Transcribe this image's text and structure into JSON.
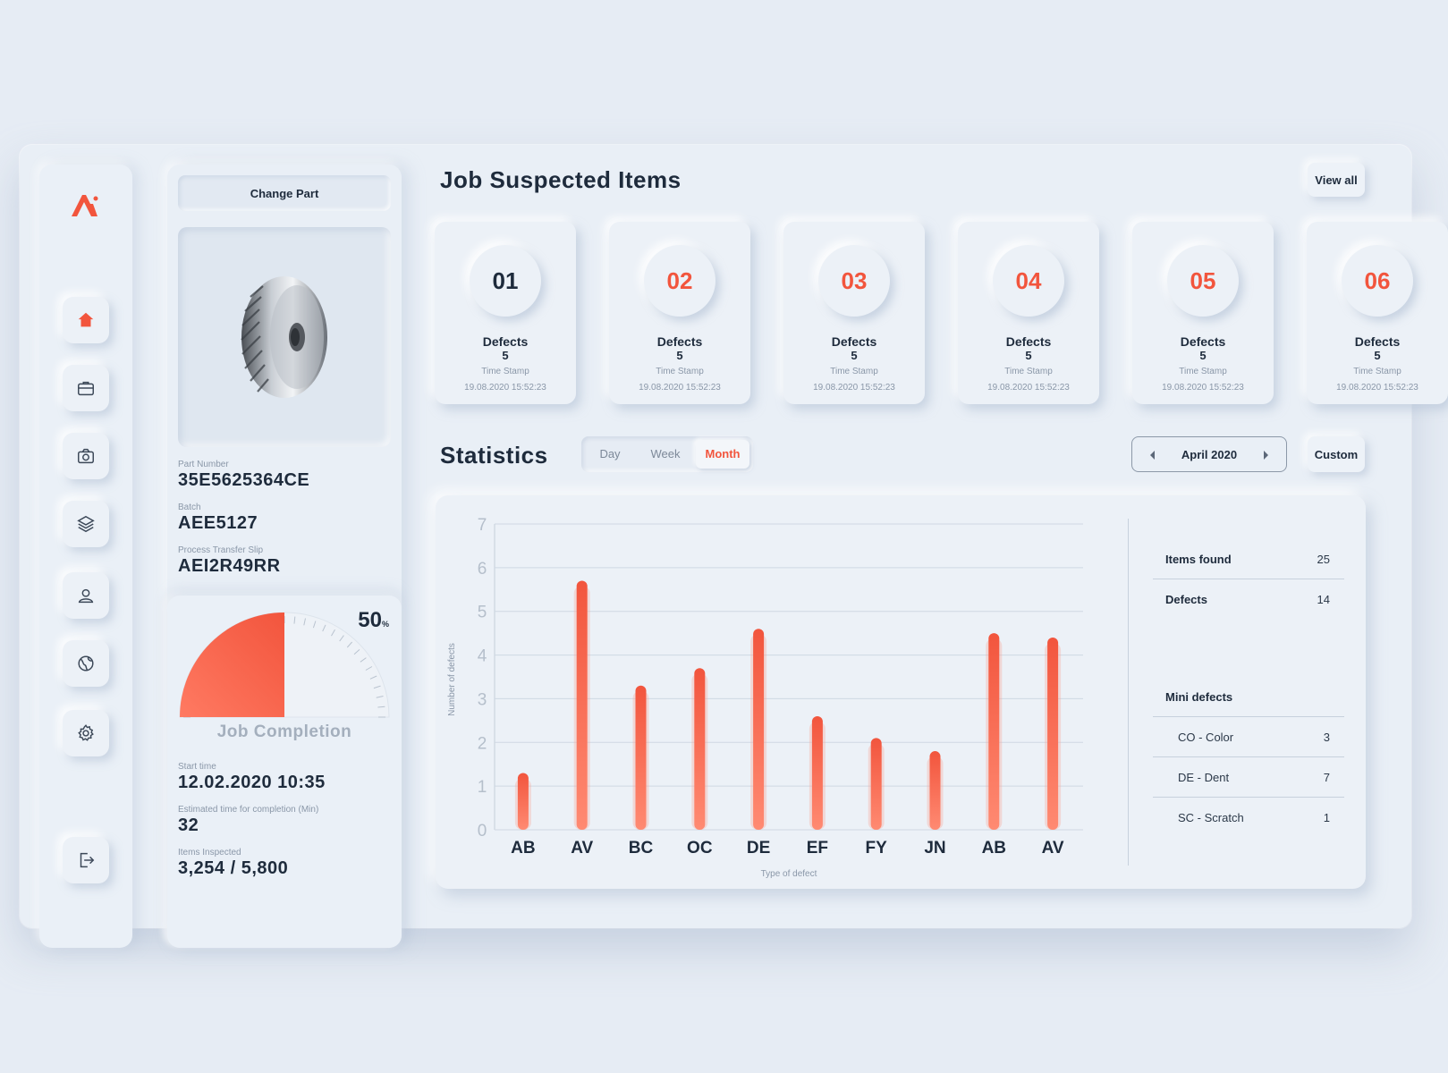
{
  "sidebar": {
    "items": [
      {
        "name": "home",
        "active": true
      },
      {
        "name": "briefcase"
      },
      {
        "name": "camera"
      },
      {
        "name": "layers"
      },
      {
        "name": "user"
      },
      {
        "name": "globe"
      },
      {
        "name": "settings"
      }
    ],
    "logout_icon": "logout-icon"
  },
  "part": {
    "change_label": "Change Part",
    "image_alt": "helical gear",
    "part_number_label": "Part Number",
    "part_number": "35E5625364CE",
    "batch_label": "Batch",
    "batch": "AEE5127",
    "slip_label": "Process Transfer Slip",
    "slip": "AEI2R49RR"
  },
  "job": {
    "percent": 50,
    "percent_text": "50",
    "percent_unit": "%",
    "title": "Job Completion",
    "start_label": "Start time",
    "start": "12.02.2020 10:35",
    "est_label": "Estimated time for completion (Min)",
    "est": "32",
    "inspected_label": "Items Inspected",
    "inspected": "3,254 / 5,800"
  },
  "suspected": {
    "title": "Job Suspected Items",
    "view_all": "View all",
    "cards": [
      {
        "num": "01",
        "label": "Defects",
        "count": "5",
        "ts_label": "Time Stamp",
        "ts": "19.08.2020 15:52:23",
        "num_color": "#1e2b3c"
      },
      {
        "num": "02",
        "label": "Defects",
        "count": "5",
        "ts_label": "Time Stamp",
        "ts": "19.08.2020 15:52:23",
        "num_color": "#f2553d"
      },
      {
        "num": "03",
        "label": "Defects",
        "count": "5",
        "ts_label": "Time Stamp",
        "ts": "19.08.2020 15:52:23",
        "num_color": "#f2553d"
      },
      {
        "num": "04",
        "label": "Defects",
        "count": "5",
        "ts_label": "Time Stamp",
        "ts": "19.08.2020 15:52:23",
        "num_color": "#f2553d"
      },
      {
        "num": "05",
        "label": "Defects",
        "count": "5",
        "ts_label": "Time Stamp",
        "ts": "19.08.2020 15:52:23",
        "num_color": "#f2553d"
      },
      {
        "num": "06",
        "label": "Defects",
        "count": "5",
        "ts_label": "Time Stamp",
        "ts": "19.08.2020 15:52:23",
        "num_color": "#f2553d"
      }
    ]
  },
  "statistics": {
    "title": "Statistics",
    "tabs": [
      {
        "label": "Day",
        "active": false
      },
      {
        "label": "Week",
        "active": false
      },
      {
        "label": "Month",
        "active": true
      }
    ],
    "month": "April 2020",
    "custom": "Custom",
    "summary": [
      {
        "label": "Items found",
        "value": "25"
      },
      {
        "label": "Defects",
        "value": "14"
      }
    ],
    "mini_title": "Mini defects",
    "mini": [
      {
        "label": "CO - Color",
        "value": "3"
      },
      {
        "label": "DE - Dent",
        "value": "7"
      },
      {
        "label": "SC - Scratch",
        "value": "1"
      }
    ]
  },
  "chart_data": {
    "type": "bar",
    "categories": [
      "AB",
      "AV",
      "BC",
      "OC",
      "DE",
      "EF",
      "FY",
      "JN",
      "AB",
      "AV"
    ],
    "values": [
      1.3,
      5.7,
      3.3,
      3.7,
      4.6,
      2.6,
      2.1,
      1.8,
      4.5,
      4.4
    ],
    "xlabel": "Type of defect",
    "ylabel": "Number of defects",
    "ylim": [
      0,
      7
    ],
    "yticks": [
      0,
      1,
      2,
      3,
      4,
      5,
      6,
      7
    ],
    "grid": true,
    "bar_color": "#f85e4a"
  }
}
